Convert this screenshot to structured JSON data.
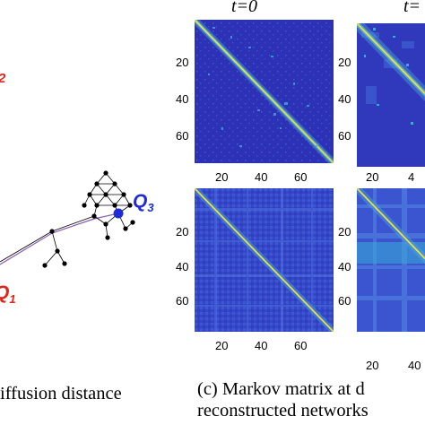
{
  "panel_b": {
    "labels": {
      "q1": "Q",
      "q1_sub": "1",
      "q2_sub": "2",
      "q3": "Q",
      "q3_sub": "3"
    },
    "caption": "iffusion distance",
    "colors": {
      "q1": "#e0251b",
      "q2": "#e0251b",
      "q3": "#1f2bd6",
      "path": "#8a5fb3",
      "node": "#000000",
      "highlight_node": "#1f2bd6"
    }
  },
  "panel_c": {
    "titles": [
      "t=0",
      "t="
    ],
    "y_ticks": [
      "20",
      "40",
      "60"
    ],
    "x_ticks": [
      "20",
      "40",
      "60"
    ],
    "x_ticks_right": [
      "20",
      "4"
    ],
    "x_ticks_right_bottom": [
      "20",
      "40"
    ],
    "y_ticks_right": [
      "20",
      "40",
      "60"
    ],
    "caption_line1": "(c) Markov matrix at d",
    "caption_line2": "reconstructed networks",
    "colors": {
      "background_low": "#2b32b8",
      "background_mid": "#3d5ad8",
      "diagonal": "#e8e040",
      "off_diagonal": "#3fa9d8"
    }
  }
}
